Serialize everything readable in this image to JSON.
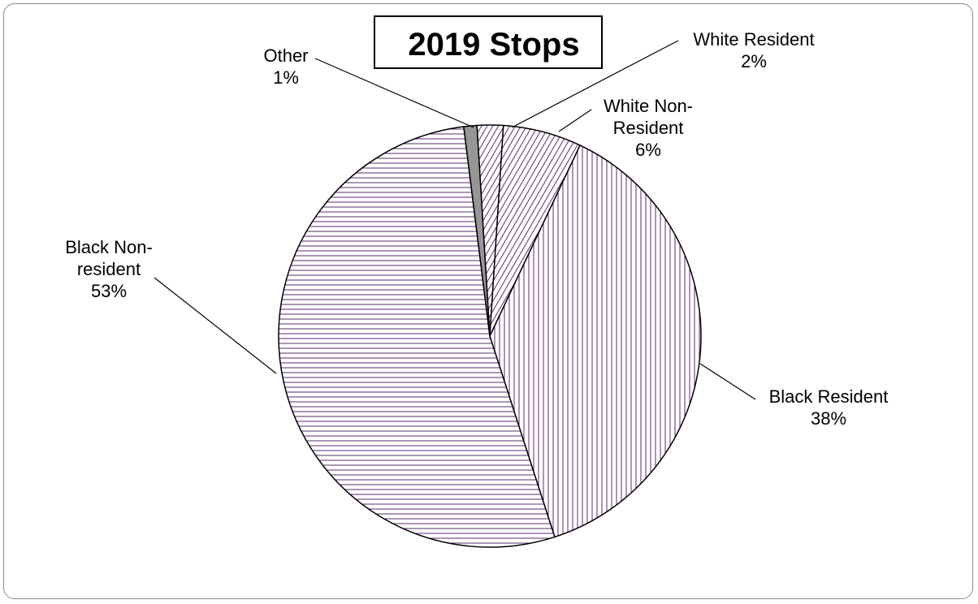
{
  "chart_data": {
    "type": "pie",
    "title": "2019 Stops",
    "start_angle_deg": -3.5,
    "slices": [
      {
        "label_lines": [
          "White Resident",
          "2%"
        ],
        "name": "White Resident",
        "value": 2,
        "pattern": "diag-right",
        "fill": "#ffffff",
        "line_color": "#5a2b6e"
      },
      {
        "label_lines": [
          "White Non-",
          "Resident",
          "6%"
        ],
        "name": "White Non-Resident",
        "value": 6,
        "pattern": "diag-right",
        "fill": "#ffffff",
        "line_color": "#5a2b6e"
      },
      {
        "label_lines": [
          "Black Resident",
          "38%"
        ],
        "name": "Black Resident",
        "value": 38,
        "pattern": "vertical",
        "fill": "#ffffff",
        "line_color": "#5a2b6e"
      },
      {
        "label_lines": [
          "Black Non-",
          "resident",
          "53%"
        ],
        "name": "Black Non-resident",
        "value": 53,
        "pattern": "horizontal",
        "fill": "#ffffff",
        "line_color": "#5a2b6e"
      },
      {
        "label_lines": [
          "Other",
          "1%"
        ],
        "name": "Other",
        "value": 1,
        "pattern": "solid",
        "fill": "#969696",
        "line_color": "#969696"
      }
    ]
  }
}
